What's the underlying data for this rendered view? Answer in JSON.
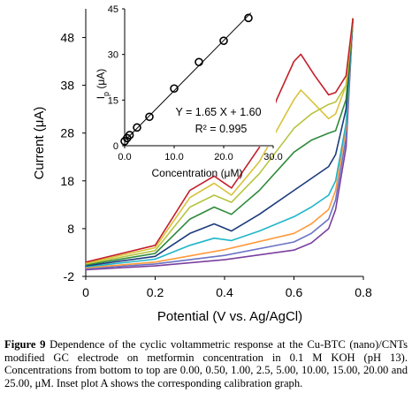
{
  "chart_data": {
    "type": "line",
    "xlabel": "Potential (V vs. Ag/AgCl)",
    "ylabel": "Current (μA)",
    "xlim": [
      0,
      0.8
    ],
    "ylim": [
      -2,
      54
    ],
    "x_ticks": [
      "0",
      "0.2",
      "0.4",
      "0.6",
      "0.8"
    ],
    "y_ticks": [
      "-2",
      "8",
      "18",
      "28",
      "38",
      "48"
    ],
    "y_tick_values": [
      -2,
      8,
      18,
      28,
      38,
      48
    ],
    "series": [
      {
        "color": "#7b3f9e",
        "x": [
          0,
          0.2,
          0.4,
          0.6,
          0.65,
          0.7,
          0.72,
          0.75,
          0.77
        ],
        "y": [
          -0.6,
          0.2,
          1.5,
          3.5,
          5.0,
          8.0,
          12.0,
          25.0,
          52.0
        ]
      },
      {
        "color": "#6a72c4",
        "x": [
          0,
          0.2,
          0.4,
          0.6,
          0.65,
          0.7,
          0.72,
          0.75,
          0.77
        ],
        "y": [
          -0.4,
          0.6,
          2.4,
          5.2,
          7.0,
          10.0,
          14.0,
          27.0,
          52.0
        ]
      },
      {
        "color": "#ff9a3c",
        "x": [
          0,
          0.2,
          0.4,
          0.6,
          0.65,
          0.7,
          0.72,
          0.75,
          0.77
        ],
        "y": [
          -0.2,
          1.0,
          3.6,
          7.0,
          9.0,
          12.0,
          16.0,
          29.0,
          52.0
        ]
      },
      {
        "color": "#1fb5c9",
        "x": [
          0,
          0.2,
          0.3,
          0.37,
          0.42,
          0.5,
          0.6,
          0.65,
          0.7,
          0.72,
          0.75,
          0.77
        ],
        "y": [
          0,
          1.6,
          4.5,
          6.0,
          5.5,
          7.5,
          10.5,
          12.5,
          15.0,
          18.0,
          30.0,
          52.0
        ]
      },
      {
        "color": "#1c3a7c",
        "x": [
          0,
          0.2,
          0.3,
          0.37,
          0.42,
          0.5,
          0.6,
          0.65,
          0.7,
          0.72,
          0.75,
          0.77
        ],
        "y": [
          0.2,
          2.2,
          7.0,
          9.0,
          7.5,
          11.0,
          16.0,
          18.5,
          21.0,
          23.5,
          33.0,
          52.0
        ]
      },
      {
        "color": "#2f8a3c",
        "x": [
          0,
          0.2,
          0.3,
          0.37,
          0.42,
          0.5,
          0.6,
          0.65,
          0.7,
          0.72,
          0.75,
          0.77
        ],
        "y": [
          0.4,
          2.8,
          10.0,
          12.5,
          11.0,
          16.0,
          24.0,
          26.5,
          28.0,
          28.5,
          35.0,
          52.0
        ]
      },
      {
        "color": "#b7c43f",
        "x": [
          0,
          0.2,
          0.3,
          0.37,
          0.42,
          0.5,
          0.6,
          0.65,
          0.7,
          0.72,
          0.75,
          0.77
        ],
        "y": [
          0.6,
          3.4,
          12.5,
          15.0,
          13.5,
          19.5,
          29.0,
          32.0,
          34.0,
          34.5,
          38.0,
          52.0
        ]
      },
      {
        "color": "#d9c23a",
        "x": [
          0,
          0.2,
          0.3,
          0.37,
          0.42,
          0.5,
          0.6,
          0.62,
          0.66,
          0.7,
          0.72,
          0.75,
          0.77
        ],
        "y": [
          0.8,
          4.0,
          14.5,
          17.5,
          15.0,
          22.0,
          35.0,
          37.0,
          34.0,
          31.0,
          32.0,
          38.0,
          52.0
        ]
      },
      {
        "color": "#c41f2a",
        "x": [
          0,
          0.2,
          0.3,
          0.37,
          0.42,
          0.5,
          0.55,
          0.6,
          0.62,
          0.66,
          0.7,
          0.72,
          0.75,
          0.77
        ],
        "y": [
          1.0,
          4.5,
          16.0,
          19.0,
          16.5,
          25.0,
          35.0,
          43.0,
          44.5,
          40.0,
          36.0,
          36.5,
          40.0,
          52.0
        ]
      }
    ],
    "inset": {
      "type": "scatter",
      "xlabel": "Concentration (μM)",
      "ylabel": "I_p (μA)",
      "xlim": [
        0,
        30
      ],
      "ylim": [
        0,
        45
      ],
      "x_ticks": [
        "0.0",
        "10.0",
        "20.0",
        "30.0"
      ],
      "y_ticks": [
        "0",
        "15",
        "30",
        "45"
      ],
      "points_x": [
        0.0,
        0.5,
        1.0,
        2.5,
        5.0,
        10.0,
        15.0,
        20.0,
        25.0
      ],
      "points_y": [
        1.5,
        2.5,
        3.5,
        6.0,
        9.5,
        18.8,
        27.5,
        34.5,
        42.0
      ],
      "equation": "Y = 1.65 X + 1.60",
      "r2": "R² = 0.995",
      "fit_slope": 1.65,
      "fit_intercept": 1.6
    }
  },
  "caption": {
    "label": "Figure 9",
    "text": "Dependence of the cyclic voltammetric response at the Cu-BTC (nano)/CNTs modified GC electrode on metformin concentration in 0.1 M KOH (pH 13). Concentrations from bottom to top are 0.00, 0.50, 1.00, 2.5, 5.00, 10.00, 15.00, 20.00 and 25.00, μM. Inset plot A shows the corresponding calibration graph."
  }
}
